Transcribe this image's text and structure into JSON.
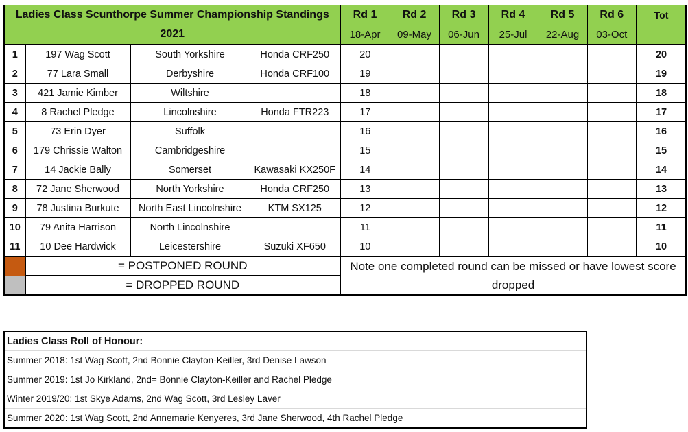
{
  "standings": {
    "title": "Ladies Class Scunthorpe Summer Championship Standings 2021",
    "rounds": [
      {
        "label": "Rd 1",
        "date": "18-Apr"
      },
      {
        "label": "Rd 2",
        "date": "09-May"
      },
      {
        "label": "Rd 3",
        "date": "06-Jun"
      },
      {
        "label": "Rd 4",
        "date": "25-Jul"
      },
      {
        "label": "Rd 5",
        "date": "22-Aug"
      },
      {
        "label": "Rd 6",
        "date": "03-Oct"
      }
    ],
    "total_label": "Tot",
    "rows": [
      {
        "pos": "1",
        "rider": "197 Wag Scott",
        "county": "South Yorkshire",
        "bike": "Honda CRF250",
        "scores": [
          "20",
          "",
          "",
          "",
          "",
          ""
        ],
        "total": "20"
      },
      {
        "pos": "2",
        "rider": "77 Lara Small",
        "county": "Derbyshire",
        "bike": "Honda CRF100",
        "scores": [
          "19",
          "",
          "",
          "",
          "",
          ""
        ],
        "total": "19"
      },
      {
        "pos": "3",
        "rider": "421 Jamie Kimber",
        "county": "Wiltshire",
        "bike": "",
        "scores": [
          "18",
          "",
          "",
          "",
          "",
          ""
        ],
        "total": "18"
      },
      {
        "pos": "4",
        "rider": "8 Rachel Pledge",
        "county": "Lincolnshire",
        "bike": "Honda FTR223",
        "scores": [
          "17",
          "",
          "",
          "",
          "",
          ""
        ],
        "total": "17"
      },
      {
        "pos": "5",
        "rider": "73 Erin Dyer",
        "county": "Suffolk",
        "bike": "",
        "scores": [
          "16",
          "",
          "",
          "",
          "",
          ""
        ],
        "total": "16"
      },
      {
        "pos": "6",
        "rider": "179 Chrissie Walton",
        "county": "Cambridgeshire",
        "bike": "",
        "scores": [
          "15",
          "",
          "",
          "",
          "",
          ""
        ],
        "total": "15"
      },
      {
        "pos": "7",
        "rider": "14 Jackie Bally",
        "county": "Somerset",
        "bike": "Kawasaki KX250F",
        "scores": [
          "14",
          "",
          "",
          "",
          "",
          ""
        ],
        "total": "14"
      },
      {
        "pos": "8",
        "rider": "72 Jane Sherwood",
        "county": "North Yorkshire",
        "bike": "Honda CRF250",
        "scores": [
          "13",
          "",
          "",
          "",
          "",
          ""
        ],
        "total": "13"
      },
      {
        "pos": "9",
        "rider": "78 Justina Burkute",
        "county": "North East Lincolnshire",
        "bike": "KTM SX125",
        "scores": [
          "12",
          "",
          "",
          "",
          "",
          ""
        ],
        "total": "12"
      },
      {
        "pos": "10",
        "rider": "79 Anita Harrison",
        "county": "North Lincolnshire",
        "bike": "",
        "scores": [
          "11",
          "",
          "",
          "",
          "",
          ""
        ],
        "total": "11"
      },
      {
        "pos": "11",
        "rider": "10 Dee Hardwick",
        "county": "Leicestershire",
        "bike": "Suzuki XF650",
        "scores": [
          "10",
          "",
          "",
          "",
          "",
          ""
        ],
        "total": "10"
      }
    ],
    "legend": {
      "postponed": "= POSTPONED ROUND",
      "dropped": "= DROPPED ROUND",
      "postponed_color": "#C55A11",
      "dropped_color": "#BFBFBF"
    },
    "note": "Note one completed round can be missed or have lowest score dropped",
    "header_color": "#92D050"
  },
  "honour": {
    "title": "Ladies Class Roll of Honour:",
    "entries": [
      "Summer 2018: 1st Wag Scott, 2nd Bonnie Clayton-Keiller, 3rd Denise Lawson",
      "Summer 2019: 1st Jo Kirkland, 2nd= Bonnie Clayton-Keiller and Rachel Pledge",
      "Winter 2019/20: 1st Skye Adams, 2nd Wag Scott, 3rd Lesley Laver",
      "Summer 2020: 1st Wag Scott, 2nd Annemarie Kenyeres, 3rd Jane Sherwood, 4th Rachel Pledge"
    ]
  }
}
